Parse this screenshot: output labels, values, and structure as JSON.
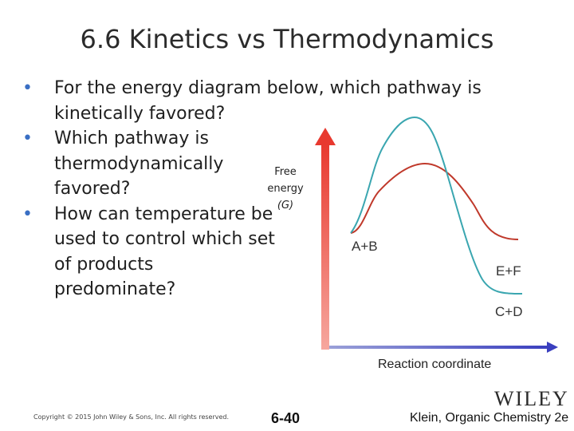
{
  "slide": {
    "title": "6.6 Kinetics vs Thermodynamics",
    "bullets": [
      "For the energy diagram below, which pathway is kinetically favored?",
      "Which pathway is thermodynamically favored?",
      "How can temperature be used to control which set of products predominate?"
    ]
  },
  "diagram": {
    "y_axis_label": [
      "Free",
      "energy",
      "(G)"
    ],
    "x_axis_label": "Reaction coordinate",
    "reactant_label": "A+B",
    "product_labels": {
      "red_pathway": "E+F",
      "blue_pathway": "C+D"
    },
    "colors": {
      "axis": "#e8392f",
      "axis_x": "#3a3fbf",
      "red_pathway": "#c0392b",
      "blue_pathway": "#3aa6b0"
    },
    "icons": {
      "y_axis": "up-arrow-icon",
      "x_axis": "right-arrow-icon"
    }
  },
  "footer": {
    "copyright": "Copyright © 2015 John Wiley & Sons, Inc. All rights reserved.",
    "slide_number": "6-40",
    "publisher": "WILEY",
    "credit": "Klein, Organic Chemistry 2e"
  }
}
